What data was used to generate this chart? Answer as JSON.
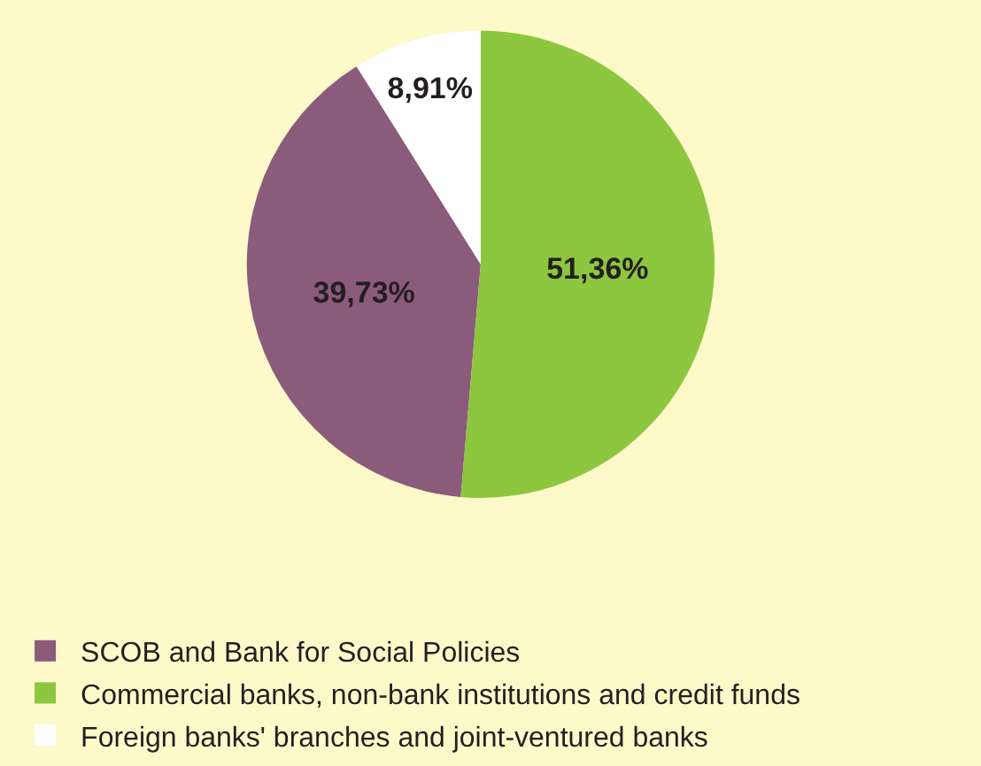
{
  "chart_data": {
    "type": "pie",
    "categories": [
      "SCOB and Bank for Social Policies",
      "Commercial banks, non-bank institutions and credit funds",
      "Foreign banks' branches and joint-ventured banks"
    ],
    "values": [
      39.73,
      51.36,
      8.91
    ],
    "colors": [
      "#8b5b7b",
      "#8dc63f",
      "#ffffff"
    ],
    "value_labels": [
      "39,73%",
      "51,36%",
      "8,91%"
    ],
    "legend": "bottom"
  }
}
